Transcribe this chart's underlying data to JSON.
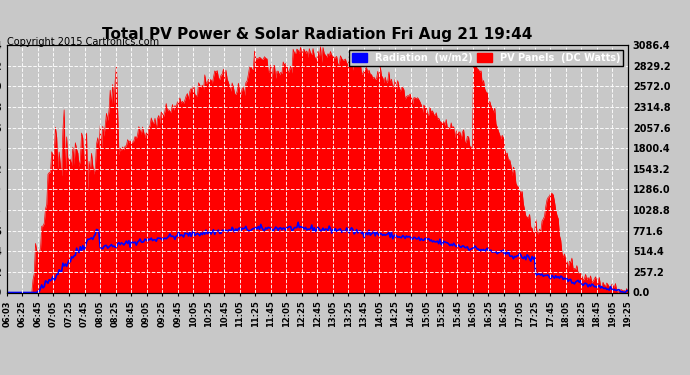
{
  "title": "Total PV Power & Solar Radiation Fri Aug 21 19:44",
  "copyright": "Copyright 2015 Cartronics.com",
  "yticks": [
    0.0,
    257.2,
    514.4,
    771.6,
    1028.8,
    1286.0,
    1543.2,
    1800.4,
    2057.6,
    2314.8,
    2572.0,
    2829.2,
    3086.4
  ],
  "ymax": 3086.4,
  "ymin": 0.0,
  "background_color": "#c8c8c8",
  "plot_bg_color": "#c8c8c8",
  "grid_color": "white",
  "pv_color": "red",
  "radiation_color": "blue",
  "xtick_labels": [
    "06:03",
    "06:25",
    "06:45",
    "07:05",
    "07:25",
    "07:45",
    "08:05",
    "08:25",
    "08:45",
    "09:05",
    "09:25",
    "09:45",
    "10:05",
    "10:25",
    "10:45",
    "11:05",
    "11:25",
    "11:45",
    "12:05",
    "12:25",
    "12:45",
    "13:05",
    "13:25",
    "13:45",
    "14:05",
    "14:25",
    "14:45",
    "15:05",
    "15:25",
    "15:45",
    "16:05",
    "16:25",
    "16:45",
    "17:05",
    "17:25",
    "17:45",
    "18:05",
    "18:25",
    "18:45",
    "19:05",
    "19:25"
  ],
  "num_points": 500
}
